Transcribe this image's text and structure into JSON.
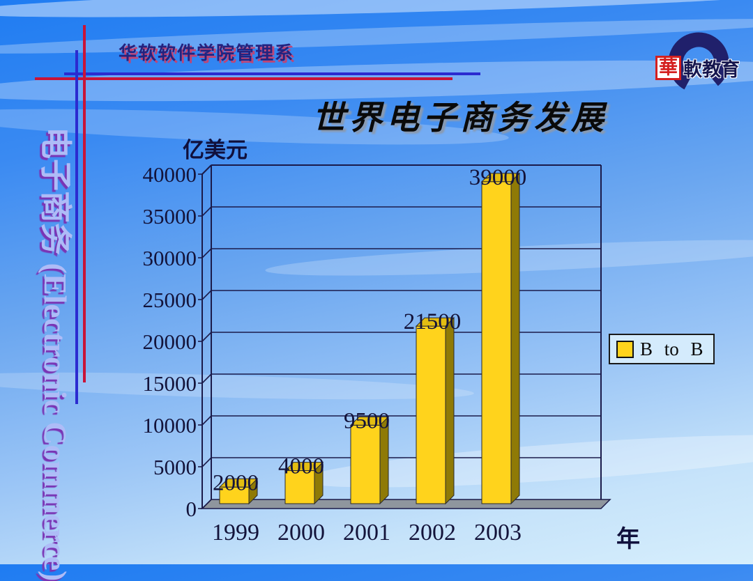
{
  "slide": {
    "header_text": "华软软件学院管理系",
    "title": "世界电子商务发展",
    "side_text": "电子商务 (Electronic Commerce)",
    "logo": {
      "emblem_char": "華",
      "name_text": "軟教育"
    }
  },
  "chart_data": {
    "type": "bar",
    "style": "3d",
    "title": "世界电子商务发展",
    "y_unit_label": "亿美元",
    "x_unit_label": "年",
    "categories": [
      "1999",
      "2000",
      "2001",
      "2002",
      "2003"
    ],
    "series": [
      {
        "name": "B to B",
        "values": [
          2000,
          4000,
          9500,
          21500,
          39000
        ],
        "color": "#FFD31C"
      }
    ],
    "value_labels": [
      2000,
      4000,
      9500,
      21500,
      39000
    ],
    "ylim": [
      0,
      40000
    ],
    "yticks": [
      0,
      5000,
      10000,
      15000,
      20000,
      25000,
      30000,
      35000,
      40000
    ],
    "grid": true,
    "legend_position": "right",
    "colors": {
      "bar_front": "#FFD31C",
      "bar_side": "#8F7A06",
      "bar_top": "#E3BD12",
      "axis": "#1B1B4A",
      "floor": "#8F969E",
      "label_text": "#13133A"
    }
  }
}
